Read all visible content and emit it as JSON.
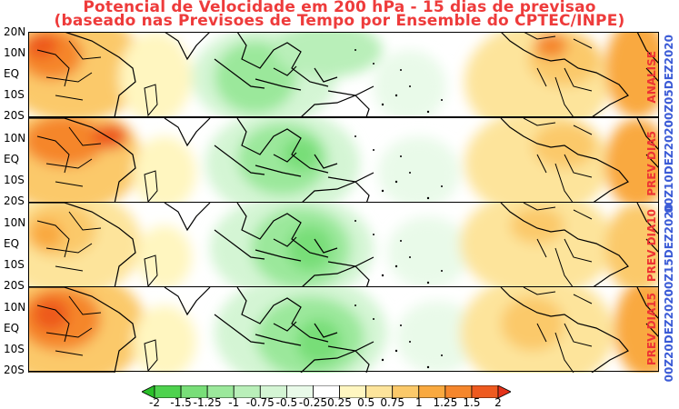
{
  "title": {
    "line1": "Potencial de Velocidade em 200 hPa - 15 dias de previsao",
    "line2": "(baseado nas Previsoes de Tempo por Ensemble do CPTEC/INPE)"
  },
  "latitude_labels": [
    "20N",
    "10N",
    "EQ",
    "10S",
    "20S"
  ],
  "panels": [
    {
      "label": "ANALISE",
      "date": "00Z05DEZ2020"
    },
    {
      "label": "PREV DIA5",
      "date": "00Z10DEZ2020"
    },
    {
      "label": "PREV DIA10",
      "date": "00Z15DEZ2020"
    },
    {
      "label": "PREV DIA15",
      "date": "00Z20DEZ2020"
    }
  ],
  "colorbar": {
    "ticks": [
      "-2",
      "-1.5",
      "-1.25",
      "-1",
      "-0.75",
      "-0.5",
      "-0.25",
      "0.25",
      "0.5",
      "0.75",
      "1",
      "1.25",
      "1.5",
      "2"
    ],
    "colors": [
      "#2ac02a",
      "#4ed24e",
      "#78de78",
      "#9be89b",
      "#b9efb9",
      "#d4f5d4",
      "#e9fae9",
      "#ffffff",
      "#fff6c0",
      "#fde49b",
      "#fbc96a",
      "#f9a93f",
      "#f5862c",
      "#ee5a1f",
      "#e4321a"
    ],
    "colors_note": ""
  },
  "map": {
    "region": "tropics 20S-20N, Africa to South America",
    "land_outline_color": "#000000"
  }
}
